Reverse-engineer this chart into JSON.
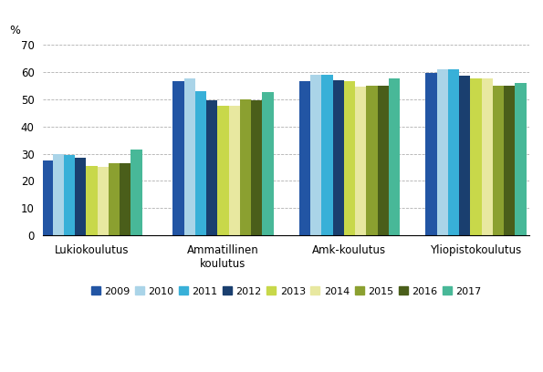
{
  "categories": [
    "Lukiokoulutus",
    "Ammatillinen\nkoulutus",
    "Amk-koulutus",
    "Yliopistokoulutus"
  ],
  "years": [
    "2009",
    "2010",
    "2011",
    "2012",
    "2013",
    "2014",
    "2015",
    "2016",
    "2017"
  ],
  "colors": [
    "#2255a4",
    "#aad4e8",
    "#38b0d8",
    "#1a3f6f",
    "#c8d84a",
    "#e8e8a0",
    "#8ba030",
    "#4a5e1a",
    "#48b898"
  ],
  "values": {
    "Lukiokoulutus": [
      27.5,
      30.0,
      29.5,
      28.5,
      25.5,
      25.0,
      26.5,
      26.5,
      31.5
    ],
    "Ammatillinen\nkoulutus": [
      56.5,
      57.5,
      53.0,
      49.5,
      47.5,
      47.5,
      50.0,
      49.5,
      52.5
    ],
    "Amk-koulutus": [
      56.5,
      59.0,
      59.0,
      57.0,
      56.5,
      54.5,
      55.0,
      55.0,
      57.5
    ],
    "Yliopistokoulutus": [
      59.5,
      61.0,
      61.0,
      58.5,
      57.5,
      57.5,
      55.0,
      55.0,
      56.0
    ]
  },
  "ylim": [
    0,
    70
  ],
  "yticks": [
    0,
    10,
    20,
    30,
    40,
    50,
    60,
    70
  ],
  "ylabel": "%",
  "background_color": "#ffffff",
  "grid_color": "#b0b0b0",
  "group_positions": [
    0.5,
    1.85,
    3.15,
    4.45
  ],
  "bar_width": 0.115,
  "xlim_left": 0.0,
  "xlim_right": 5.0
}
